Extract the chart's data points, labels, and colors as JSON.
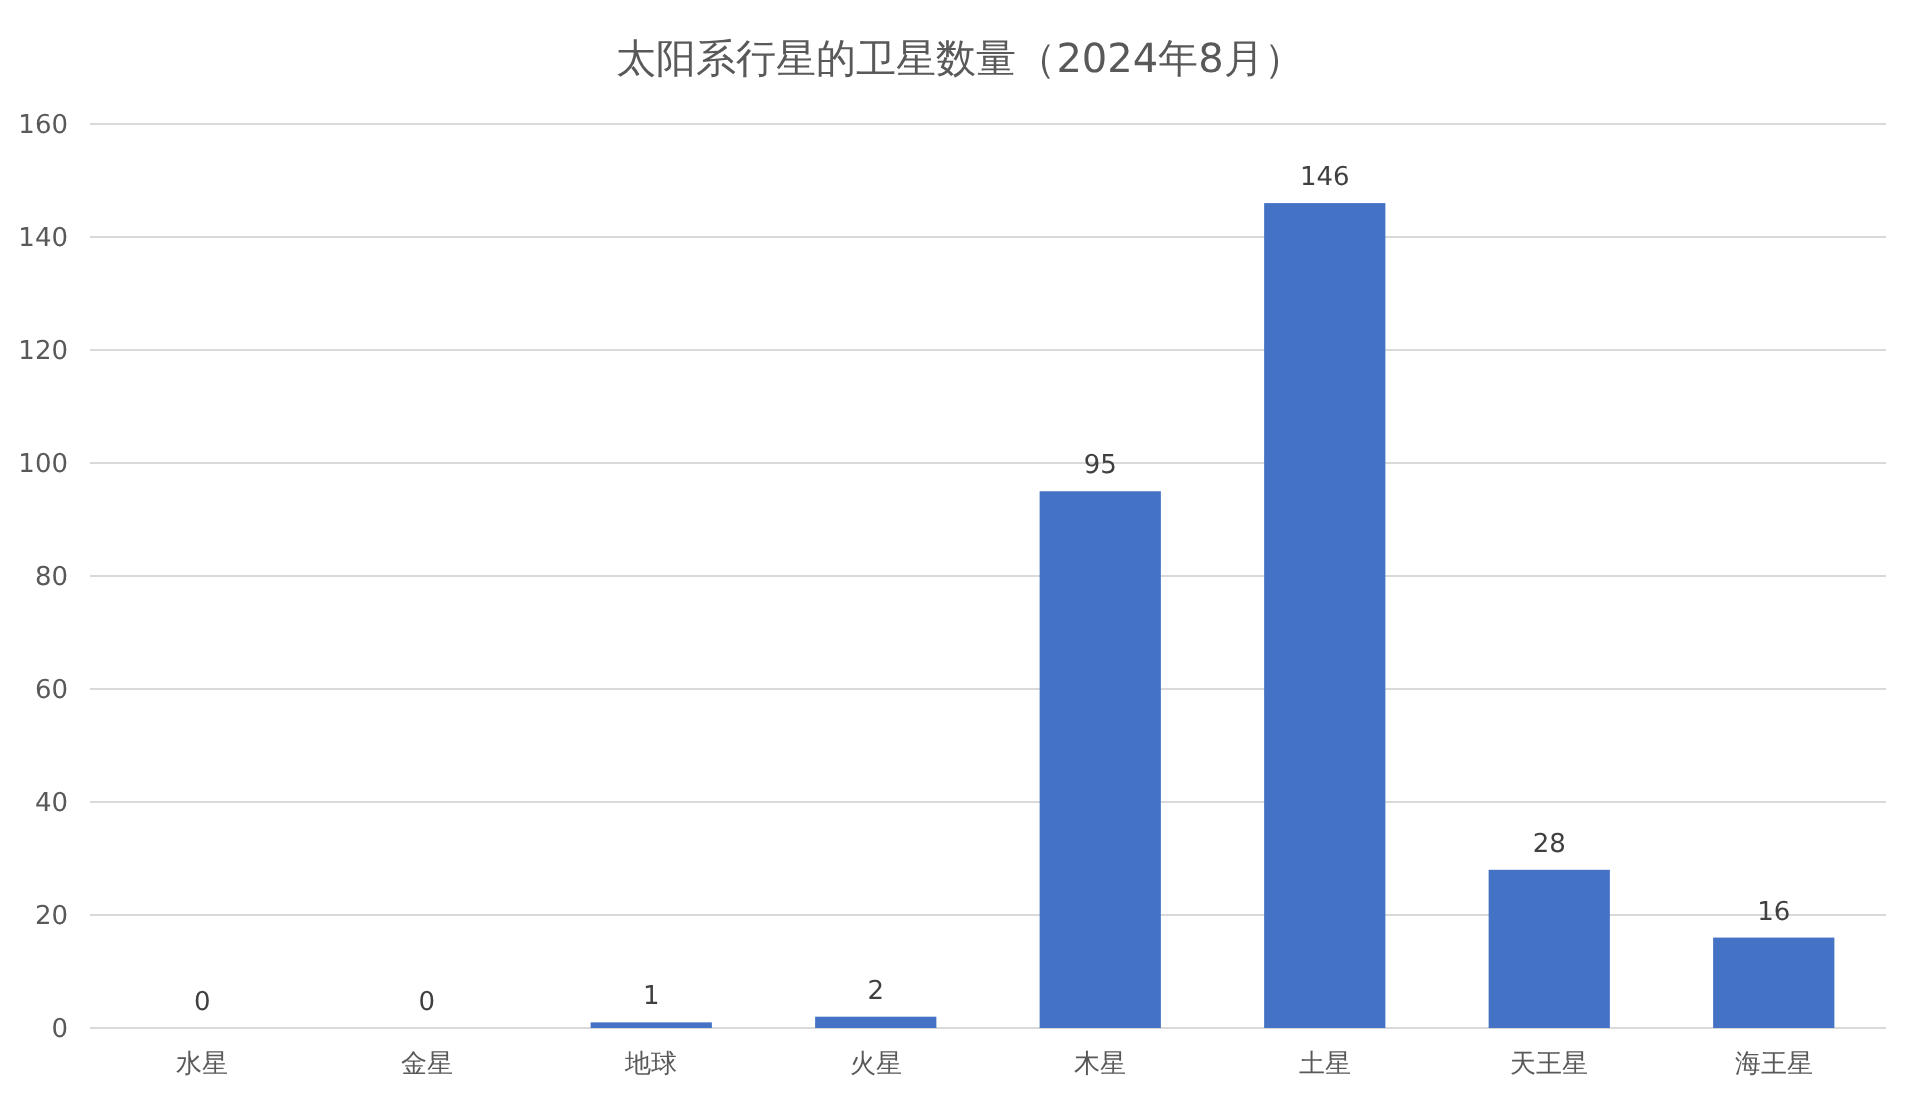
{
  "chart_data": {
    "type": "bar",
    "title": "太阳系行星的卫星数量（2024年8月）",
    "categories": [
      "水星",
      "金星",
      "地球",
      "火星",
      "木星",
      "土星",
      "天王星",
      "海王星"
    ],
    "values": [
      0,
      0,
      1,
      2,
      95,
      146,
      28,
      16
    ],
    "color": "#4472c4",
    "ylim": [
      0,
      160
    ],
    "yticks": [
      0,
      20,
      40,
      60,
      80,
      100,
      120,
      140,
      160
    ],
    "grid": "y",
    "data_labels": true
  }
}
